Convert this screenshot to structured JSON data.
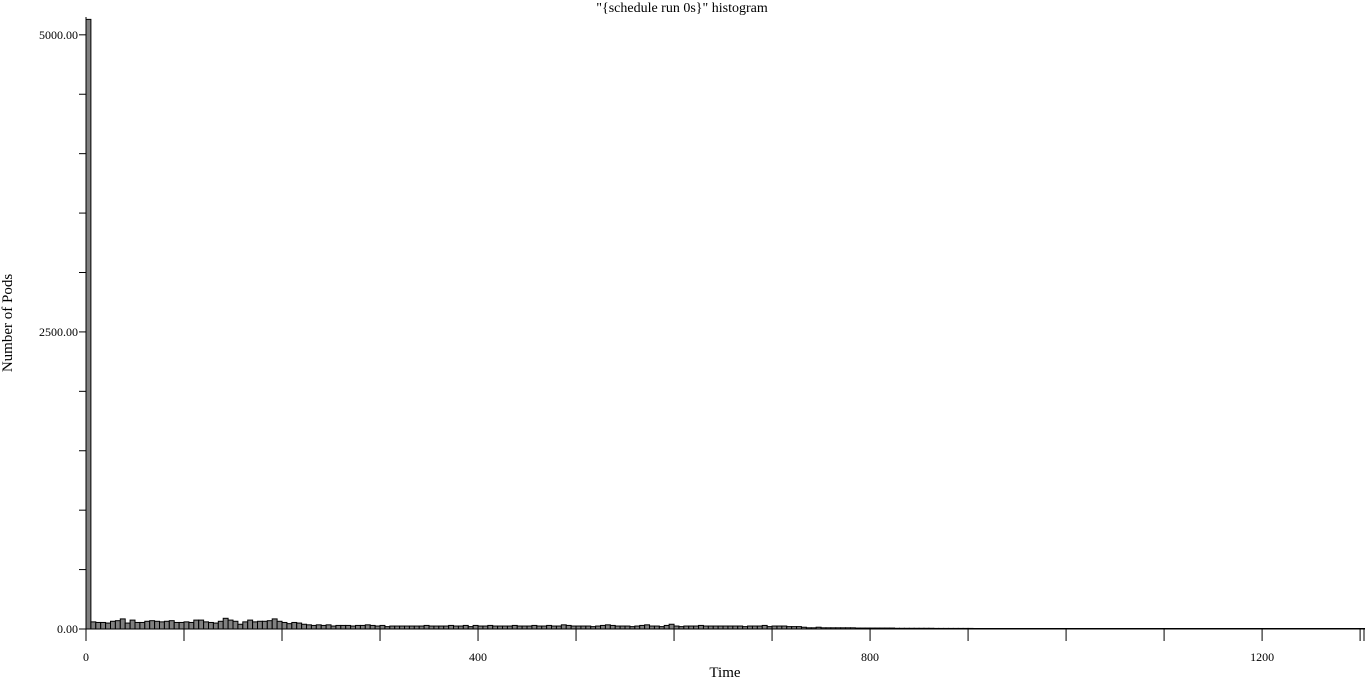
{
  "chart_data": {
    "type": "bar",
    "title": "\"{schedule run 0s}\" histogram",
    "xlabel": "Time",
    "ylabel": "Number of Pods",
    "bin_width": 5,
    "xlim": [
      0,
      1305
    ],
    "ylim": [
      0,
      5150
    ],
    "x_ticks": [
      0,
      400,
      800,
      1200
    ],
    "x_minor_step": 100,
    "y_ticks": [
      0,
      2500,
      5000
    ],
    "y_tick_labels": [
      "0.00",
      "2500.00",
      "5000.00"
    ],
    "y_minor_step": 500,
    "grid": false,
    "legend": "none",
    "colors": {
      "bar_fill": "#808080",
      "bar_stroke": "#000000"
    },
    "values": [
      5130,
      60,
      55,
      55,
      50,
      65,
      70,
      85,
      50,
      75,
      55,
      55,
      65,
      70,
      65,
      60,
      65,
      70,
      55,
      55,
      60,
      55,
      75,
      75,
      60,
      55,
      50,
      65,
      90,
      75,
      65,
      40,
      60,
      75,
      60,
      65,
      65,
      70,
      85,
      65,
      55,
      45,
      55,
      50,
      40,
      35,
      30,
      35,
      30,
      35,
      25,
      30,
      30,
      30,
      25,
      30,
      30,
      35,
      30,
      25,
      30,
      20,
      25,
      25,
      25,
      25,
      25,
      25,
      25,
      30,
      25,
      25,
      25,
      25,
      30,
      25,
      25,
      30,
      20,
      30,
      25,
      25,
      30,
      25,
      25,
      25,
      25,
      30,
      25,
      25,
      25,
      30,
      25,
      25,
      30,
      25,
      25,
      35,
      30,
      25,
      25,
      25,
      25,
      20,
      25,
      30,
      35,
      30,
      25,
      25,
      25,
      20,
      25,
      30,
      35,
      25,
      25,
      20,
      30,
      40,
      25,
      20,
      25,
      25,
      25,
      30,
      25,
      25,
      25,
      25,
      25,
      25,
      25,
      25,
      20,
      25,
      25,
      25,
      30,
      20,
      25,
      25,
      25,
      20,
      20,
      20,
      15,
      10,
      10,
      15,
      10,
      10,
      10,
      10,
      10,
      10,
      10,
      8,
      8,
      8,
      8,
      8,
      8,
      8,
      8,
      6,
      6,
      6,
      6,
      6,
      6,
      6,
      6,
      5,
      5,
      5,
      5,
      5,
      5,
      5,
      5,
      4,
      4,
      4,
      4,
      4,
      4,
      4,
      4,
      3,
      3,
      3,
      3,
      3,
      3,
      3,
      3,
      3,
      2,
      2,
      2,
      2,
      2,
      2,
      2,
      2,
      2,
      2,
      2,
      2,
      2,
      2,
      2,
      2,
      2,
      2,
      2,
      2,
      2,
      2,
      2,
      2,
      2,
      2,
      2,
      1,
      1,
      1,
      1,
      1,
      1,
      1,
      1,
      1,
      1,
      1,
      1,
      1,
      1,
      1,
      1,
      1,
      1,
      1,
      1,
      1,
      1,
      1,
      1,
      1,
      1,
      1,
      1,
      1,
      1,
      1,
      1,
      1,
      1,
      1,
      1,
      1,
      1,
      1,
      1,
      1,
      1,
      1,
      1,
      1,
      1,
      1,
      1
    ]
  }
}
